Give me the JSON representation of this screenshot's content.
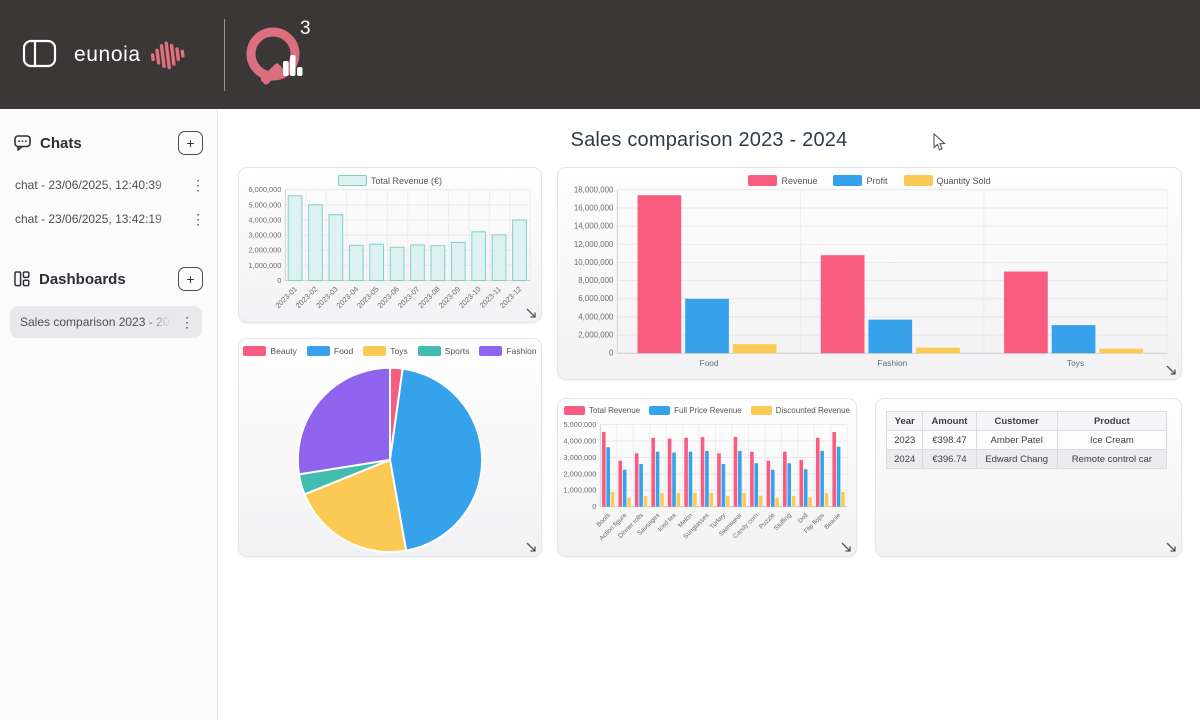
{
  "header": {
    "brand": "eunoia",
    "q_superscript": "3"
  },
  "icons": {
    "kebab": "⋮",
    "plus": "+"
  },
  "sidebar": {
    "chats": {
      "label": "Chats",
      "items": [
        {
          "label": "chat - 23/06/2025, 12:40:39"
        },
        {
          "label": "chat - 23/06/2025, 13:42:19"
        }
      ]
    },
    "dashboards": {
      "label": "Dashboards",
      "items": [
        {
          "label": "Sales comparison 2023 - 2024",
          "selected": true
        }
      ]
    }
  },
  "main": {
    "title": "Sales comparison 2023 - 2024"
  },
  "colors": {
    "header_bg": "#3B3737",
    "logo_pink": "#DB6F80",
    "pink": "#F85C81",
    "blue": "#36A2EB",
    "yellow": "#FBCA55",
    "teal": "#41BCAE",
    "purple": "#8E63EE",
    "teal_outline": "#7DCFCB",
    "teal_fill": "#DEF1F1"
  },
  "chart_data": [
    {
      "id": "monthly-revenue",
      "type": "bar",
      "legend_position": "top",
      "grid": true,
      "categories": [
        "2023-01",
        "2023-02",
        "2023-03",
        "2023-04",
        "2023-05",
        "2023-06",
        "2023-07",
        "2023-08",
        "2023-09",
        "2023-10",
        "2023-11",
        "2023-12"
      ],
      "series": [
        {
          "name": "Total Revenue (€)",
          "color": "#7DCFCB",
          "fill": "#DEF1F1",
          "values": [
            5600000,
            5000000,
            4350000,
            2330000,
            2400000,
            2200000,
            2350000,
            2300000,
            2520000,
            3220000,
            3020000,
            4000000
          ]
        }
      ],
      "ylim": [
        0,
        6000000
      ],
      "ytick_step": 1000000
    },
    {
      "id": "category-comparison",
      "type": "bar",
      "legend_position": "top",
      "grid": true,
      "categories": [
        "Food",
        "Fashion",
        "Toys"
      ],
      "series": [
        {
          "name": "Revenue",
          "color": "#F85C81",
          "values": [
            17400000,
            10800000,
            9000000
          ]
        },
        {
          "name": "Profit",
          "color": "#36A2EB",
          "values": [
            6000000,
            3700000,
            3100000
          ]
        },
        {
          "name": "Quantity Sold",
          "color": "#FBCA55",
          "values": [
            1000000,
            620000,
            500000
          ]
        }
      ],
      "ylim": [
        0,
        18000000
      ],
      "ytick_step": 2000000
    },
    {
      "id": "category-share",
      "type": "pie",
      "legend_position": "top",
      "labels": [
        "Beauty",
        "Food",
        "Toys",
        "Sports",
        "Fashion"
      ],
      "values": [
        2.2,
        45.0,
        21.7,
        3.6,
        27.5
      ],
      "colors": [
        "#F85C81",
        "#36A2EB",
        "#FBCA55",
        "#41BCAE",
        "#8E63EE"
      ]
    },
    {
      "id": "product-revenue",
      "type": "bar",
      "legend_position": "top",
      "grid": true,
      "categories": [
        "Boots",
        "Action figure",
        "Dinner rolls",
        "Sausages",
        "Iced tea",
        "Melon",
        "Sunglasses",
        "Turkey",
        "Swimwear",
        "Candy corn",
        "Puzzle",
        "Stuffing",
        "Doll",
        "Flip flops",
        "Beanie"
      ],
      "series": [
        {
          "name": "Total Revenue",
          "color": "#F85C81",
          "values": [
            4550000,
            2800000,
            3250000,
            4200000,
            4150000,
            4200000,
            4250000,
            3250000,
            4250000,
            3350000,
            2800000,
            3350000,
            2850000,
            4200000,
            4550000
          ]
        },
        {
          "name": "Full Price Revenue",
          "color": "#36A2EB",
          "values": [
            3620000,
            2250000,
            2600000,
            3350000,
            3300000,
            3350000,
            3400000,
            2600000,
            3400000,
            2650000,
            2250000,
            2650000,
            2280000,
            3400000,
            3650000
          ]
        },
        {
          "name": "Discounted Revenue",
          "color": "#FBCA55",
          "values": [
            900000,
            550000,
            650000,
            830000,
            820000,
            840000,
            850000,
            660000,
            850000,
            670000,
            550000,
            660000,
            570000,
            840000,
            900000
          ]
        }
      ],
      "ylim": [
        0,
        5000000
      ],
      "ytick_step": 1000000
    },
    {
      "id": "top-sales",
      "type": "table",
      "headers": [
        "Year",
        "Amount",
        "Customer",
        "Product"
      ],
      "rows": [
        [
          "2023",
          "€398.47",
          "Amber Patel",
          "Ice Cream"
        ],
        [
          "2024",
          "€396.74",
          "Edward Chang",
          "Remote control car"
        ]
      ]
    }
  ]
}
